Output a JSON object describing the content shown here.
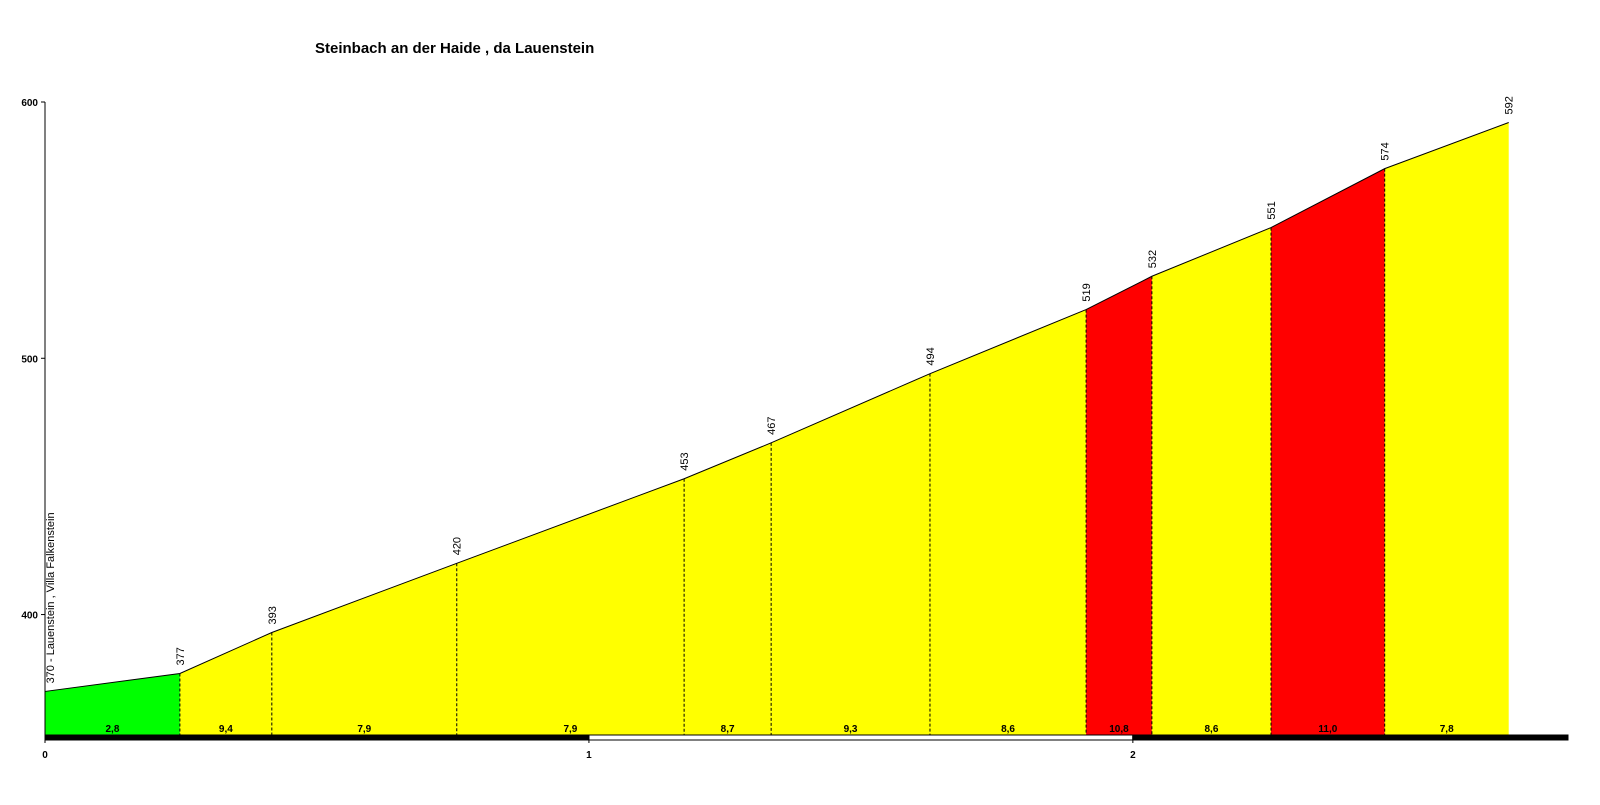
{
  "chart_data": {
    "type": "area",
    "title": "Steinbach an der Haide , da Lauenstein",
    "start_label": "370 - Lauenstein , Villa Falkenstein",
    "x": [
      0,
      0.248,
      0.417,
      0.757,
      1.175,
      1.335,
      1.627,
      1.914,
      2.035,
      2.254,
      2.463,
      2.691
    ],
    "values": [
      370,
      377,
      393,
      420,
      453,
      467,
      494,
      519,
      532,
      551,
      574,
      592
    ],
    "gradients": [
      2.8,
      9.4,
      7.9,
      7.9,
      8.7,
      9.3,
      8.6,
      10.8,
      8.6,
      11.0,
      7.8
    ],
    "gradient_labels": [
      "2,8",
      "9,4",
      "7,9",
      "7,9",
      "8,7",
      "9,3",
      "8,6",
      "10,8",
      "8,6",
      "11,0",
      "7,8"
    ],
    "segment_colors": [
      "#00ff00",
      "#ffff00",
      "#ffff00",
      "#ffff00",
      "#ffff00",
      "#ffff00",
      "#ffff00",
      "#ff0000",
      "#ffff00",
      "#ff0000",
      "#ffff00"
    ],
    "xlim": [
      0,
      2.8
    ],
    "xticks": [
      0,
      1,
      2
    ],
    "ylim": [
      353,
      600
    ],
    "yticks": [
      400,
      500,
      600
    ]
  }
}
